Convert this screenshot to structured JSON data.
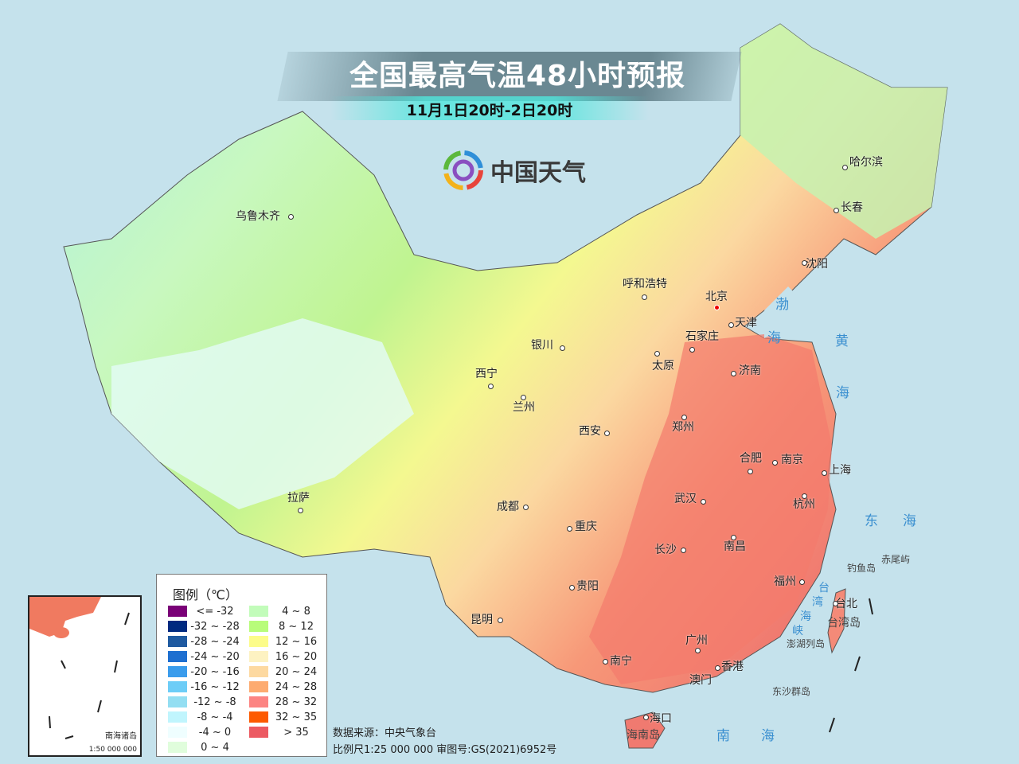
{
  "header": {
    "title": "全国最高气温48小时预报",
    "subtitle": "11月1日20时-2日20时"
  },
  "logo": {
    "text": "中国天气",
    "icon": "china-weather-swirl-icon"
  },
  "cities": [
    {
      "name": "哈尔滨"
    },
    {
      "name": "长春"
    },
    {
      "name": "沈阳"
    },
    {
      "name": "呼和浩特"
    },
    {
      "name": "北京"
    },
    {
      "name": "天津"
    },
    {
      "name": "石家庄"
    },
    {
      "name": "太原"
    },
    {
      "name": "济南"
    },
    {
      "name": "银川"
    },
    {
      "name": "西宁"
    },
    {
      "name": "兰州"
    },
    {
      "name": "西安"
    },
    {
      "name": "郑州"
    },
    {
      "name": "合肥"
    },
    {
      "name": "南京"
    },
    {
      "name": "上海"
    },
    {
      "name": "杭州"
    },
    {
      "name": "武汉"
    },
    {
      "name": "成都"
    },
    {
      "name": "重庆"
    },
    {
      "name": "长沙"
    },
    {
      "name": "南昌"
    },
    {
      "name": "贵阳"
    },
    {
      "name": "福州"
    },
    {
      "name": "台北"
    },
    {
      "name": "昆明"
    },
    {
      "name": "广州"
    },
    {
      "name": "香港"
    },
    {
      "name": "澳门"
    },
    {
      "name": "南宁"
    },
    {
      "name": "海口"
    },
    {
      "name": "拉萨"
    },
    {
      "name": "乌鲁木齐"
    }
  ],
  "seas": [
    "渤",
    "海",
    "黄",
    "海",
    "东",
    "海",
    "南",
    "海",
    "台",
    "湾",
    "海",
    "峡"
  ],
  "islands": [
    "海南岛",
    "钓鱼岛",
    "赤尾屿",
    "台湾岛",
    "澎湖列岛",
    "东沙群岛"
  ],
  "legend": {
    "title": "图例（℃）",
    "items": [
      {
        "label": "<= -32",
        "color": "#7a0077"
      },
      {
        "label": "-32 ~ -28",
        "color": "#002a80"
      },
      {
        "label": "-28 ~ -24",
        "color": "#1f5aa0"
      },
      {
        "label": "-24 ~ -20",
        "color": "#1e6fd0"
      },
      {
        "label": "-20 ~ -16",
        "color": "#3a9cec"
      },
      {
        "label": "-16 ~ -12",
        "color": "#6dcdf7"
      },
      {
        "label": "-12 ~ -8",
        "color": "#93def2"
      },
      {
        "label": "-8 ~ -4",
        "color": "#c0f5fd"
      },
      {
        "label": "-4 ~ 0",
        "color": "#effeff"
      },
      {
        "label": "0 ~ 4",
        "color": "#e0fddc"
      },
      {
        "label": "4 ~ 8",
        "color": "#c2fcba"
      },
      {
        "label": "8 ~ 12",
        "color": "#b8fc7a"
      },
      {
        "label": "12 ~ 16",
        "color": "#fcfc8a"
      },
      {
        "label": "16 ~ 20",
        "color": "#fdf2c2"
      },
      {
        "label": "20 ~ 24",
        "color": "#fdd9a0"
      },
      {
        "label": "24 ~ 28",
        "color": "#fdab70"
      },
      {
        "label": "28 ~ 32",
        "color": "#fc8482"
      },
      {
        "label": "32 ~ 35",
        "color": "#fd5a00"
      },
      {
        "label": "> 35",
        "color": "#ec5a62"
      }
    ]
  },
  "inset": {
    "title": "南海诸岛",
    "scale": "1:50 000 000"
  },
  "footer": {
    "source": "数据来源：中央气象台",
    "scale_review": "比例尺1:25 000 000   审图号:GS(2021)6952号"
  }
}
